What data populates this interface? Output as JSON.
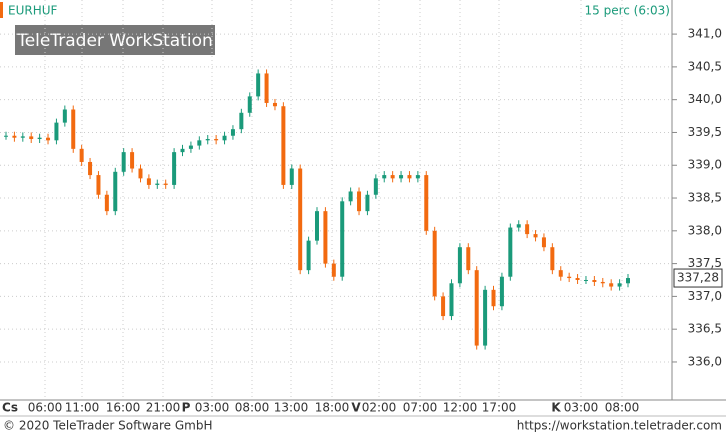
{
  "chart_data": {
    "type": "candlestick",
    "symbol": "EURHUF",
    "interval": "15 perc (6:03)",
    "watermark": "TeleTrader WorkStation",
    "x_labels": [
      "Cs",
      "06:00",
      "11:00",
      "16:00",
      "21:00",
      "P",
      "03:00",
      "08:00",
      "13:00",
      "18:00",
      "V",
      "02:00",
      "07:00",
      "12:00",
      "17:00",
      "K",
      "03:00",
      "08:00"
    ],
    "values": [
      339.45,
      339.42,
      339.44,
      339.4,
      339.42,
      339.38,
      339.65,
      339.85,
      339.25,
      339.05,
      338.85,
      338.55,
      338.3,
      338.9,
      339.2,
      338.95,
      338.8,
      338.7,
      338.72,
      338.7,
      339.2,
      339.25,
      339.3,
      339.38,
      339.4,
      339.38,
      339.45,
      339.55,
      339.8,
      340.05,
      340.4,
      339.95,
      339.9,
      338.7,
      338.95,
      337.4,
      337.85,
      338.3,
      337.5,
      337.3,
      338.45,
      338.6,
      338.3,
      338.55,
      338.8,
      338.85,
      338.8,
      338.85,
      338.8,
      338.85,
      338,
      337,
      336.7,
      337.2,
      337.75,
      337.4,
      336.25,
      337.1,
      336.85,
      337.3,
      338.05,
      338.1,
      337.95,
      337.9,
      337.75,
      337.4,
      337.3,
      337.28,
      337.25,
      337.25,
      337.22,
      337.2,
      337.15,
      337.2,
      337.28
    ],
    "last_value_label": "337,28",
    "up_color": "#1a9a7a",
    "down_color": "#f26a10",
    "ylim": [
      335.42,
      341.52
    ],
    "yticks": [
      {
        "value": 336,
        "label": "336,0"
      },
      {
        "value": 336.5,
        "label": "336,5"
      },
      {
        "value": 337,
        "label": "337,0"
      },
      {
        "value": 337.5,
        "label": "337,5"
      },
      {
        "value": 338,
        "label": "338,0"
      },
      {
        "value": 338.5,
        "label": "338,5"
      },
      {
        "value": 339,
        "label": "339,0"
      },
      {
        "value": 339.5,
        "label": "339,5"
      },
      {
        "value": 340,
        "label": "340,0"
      },
      {
        "value": 340.5,
        "label": "340,5"
      },
      {
        "value": 341,
        "label": "341,0"
      }
    ],
    "grid": true,
    "copyright": "© 2020 TeleTrader Software GmbH",
    "url": "https://workstation.teletrader.com"
  }
}
